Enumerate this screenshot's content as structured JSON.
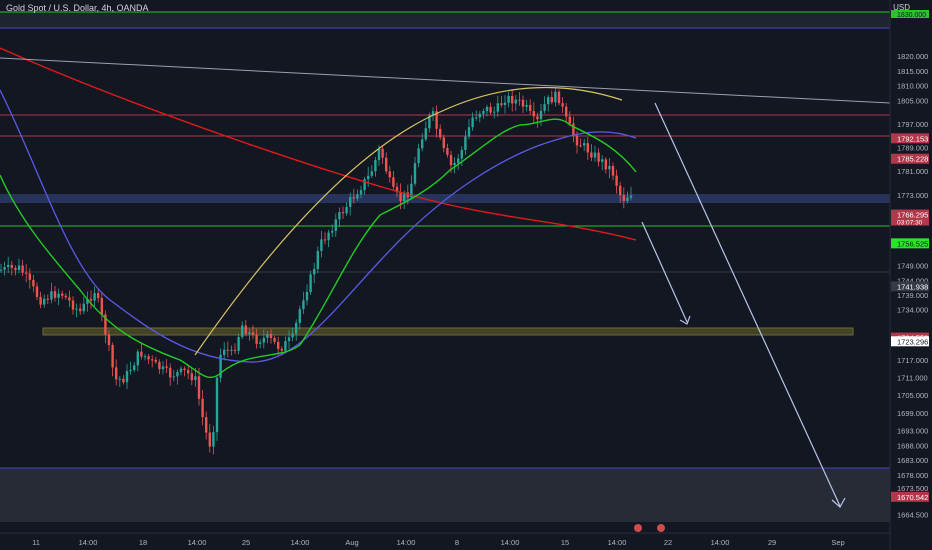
{
  "header": {
    "title": "Gold Spot / U.S. Dollar, 4h, OANDA",
    "currency": "USD"
  },
  "chart_data": {
    "type": "candlestick",
    "symbol": "Gold Spot / U.S. Dollar",
    "interval": "4h",
    "source": "OANDA",
    "currency": "USD",
    "ylim": [
      1662,
      1835
    ],
    "y_ticks": [
      1664.5,
      1673.5,
      1678,
      1683,
      1688,
      1693,
      1699,
      1705,
      1711,
      1717,
      1734,
      1739,
      1744,
      1749,
      1773,
      1781,
      1789,
      1797,
      1805,
      1810,
      1815,
      1820
    ],
    "y_tick_labels": [
      "1664.500",
      "1673.500",
      "1678.000",
      "1683.000",
      "1688.000",
      "1693.000",
      "1699.000",
      "1705.000",
      "1711.000",
      "1717.000",
      "1734.000",
      "1739.000",
      "1744.000",
      "1749.000",
      "1773.000",
      "1781.000",
      "1789.000",
      "1797.000",
      "1805.000",
      "1810.000",
      "1815.000",
      "1820.000"
    ],
    "x_ticks": [
      "11",
      "14:00",
      "18",
      "14:00",
      "25",
      "14:00",
      "Aug",
      "14:00",
      "8",
      "14:00",
      "15",
      "14:00",
      "22",
      "14:00",
      "29",
      "Sep"
    ],
    "price_labels": [
      {
        "label": "1792.153",
        "value": 1792.153,
        "color": "#b2374a"
      },
      {
        "label": "1785.228",
        "value": 1785.228,
        "color": "#b2374a"
      },
      {
        "label": "1766.295",
        "value": 1766.295,
        "color": "#b2374a",
        "countdown": "03:07:30"
      },
      {
        "label": "1756.525",
        "value": 1756.525,
        "color": "#26e626"
      },
      {
        "label": "1741.938",
        "value": 1741.938,
        "color": "#363a45"
      },
      {
        "label": "1724.552",
        "value": 1724.552,
        "color": "#b2374a"
      },
      {
        "label": "1723.296",
        "value": 1723.296,
        "color": "#ffffff"
      },
      {
        "label": "1670.542",
        "value": 1670.542,
        "color": "#b2374a"
      }
    ],
    "top_label": "1830.000",
    "colors": {
      "up": "#26a69a",
      "down": "#ef5350",
      "ma_fast": "#22cc22",
      "ma_mid": "#5a5ae6",
      "ma_slow": "#e01b1b",
      "arc": "#d9c560",
      "arrow": "#b8c4e8",
      "trendline": "#9aa0b0"
    }
  }
}
